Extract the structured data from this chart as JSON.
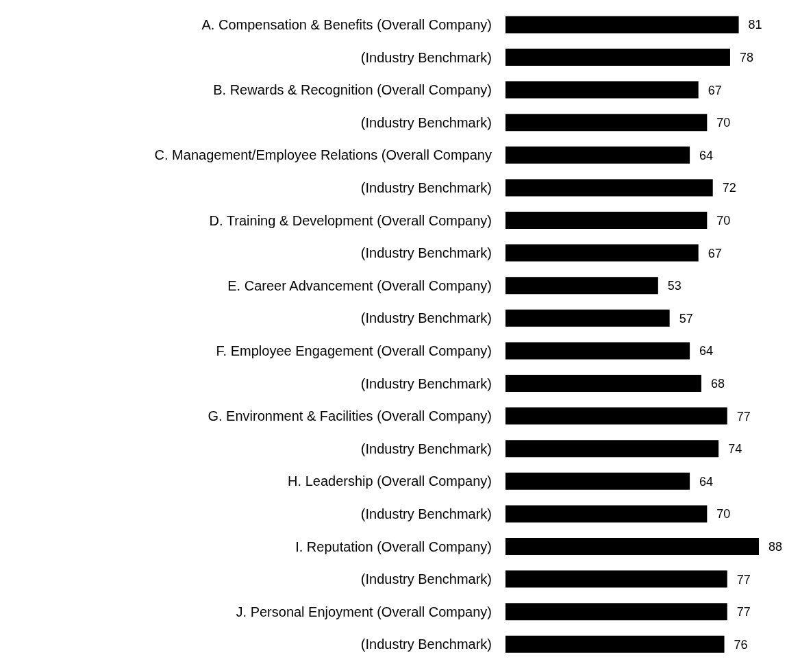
{
  "chart_data": {
    "type": "bar",
    "orientation": "horizontal",
    "categories": [
      "A. Compensation & Benefits (Overall Company)",
      "(Industry Benchmark)",
      "B. Rewards & Recognition (Overall Company)",
      "(Industry Benchmark)",
      "C. Management/Employee Relations (Overall Company",
      "(Industry Benchmark)",
      "D. Training & Development (Overall Company)",
      "(Industry Benchmark)",
      "E. Career Advancement (Overall Company)",
      "(Industry Benchmark)",
      "F. Employee Engagement (Overall Company)",
      "(Industry Benchmark)",
      "G. Environment & Facilities (Overall Company)",
      "(Industry Benchmark)",
      "H. Leadership (Overall Company)",
      "(Industry Benchmark)",
      "I. Reputation (Overall Company)",
      "(Industry Benchmark)",
      "J. Personal Enjoyment (Overall Company)",
      "(Industry Benchmark)"
    ],
    "values": [
      81,
      78,
      67,
      70,
      64,
      72,
      70,
      67,
      53,
      57,
      64,
      68,
      77,
      74,
      64,
      70,
      88,
      77,
      77,
      76
    ],
    "color": "#000000",
    "data_labels": true
  }
}
